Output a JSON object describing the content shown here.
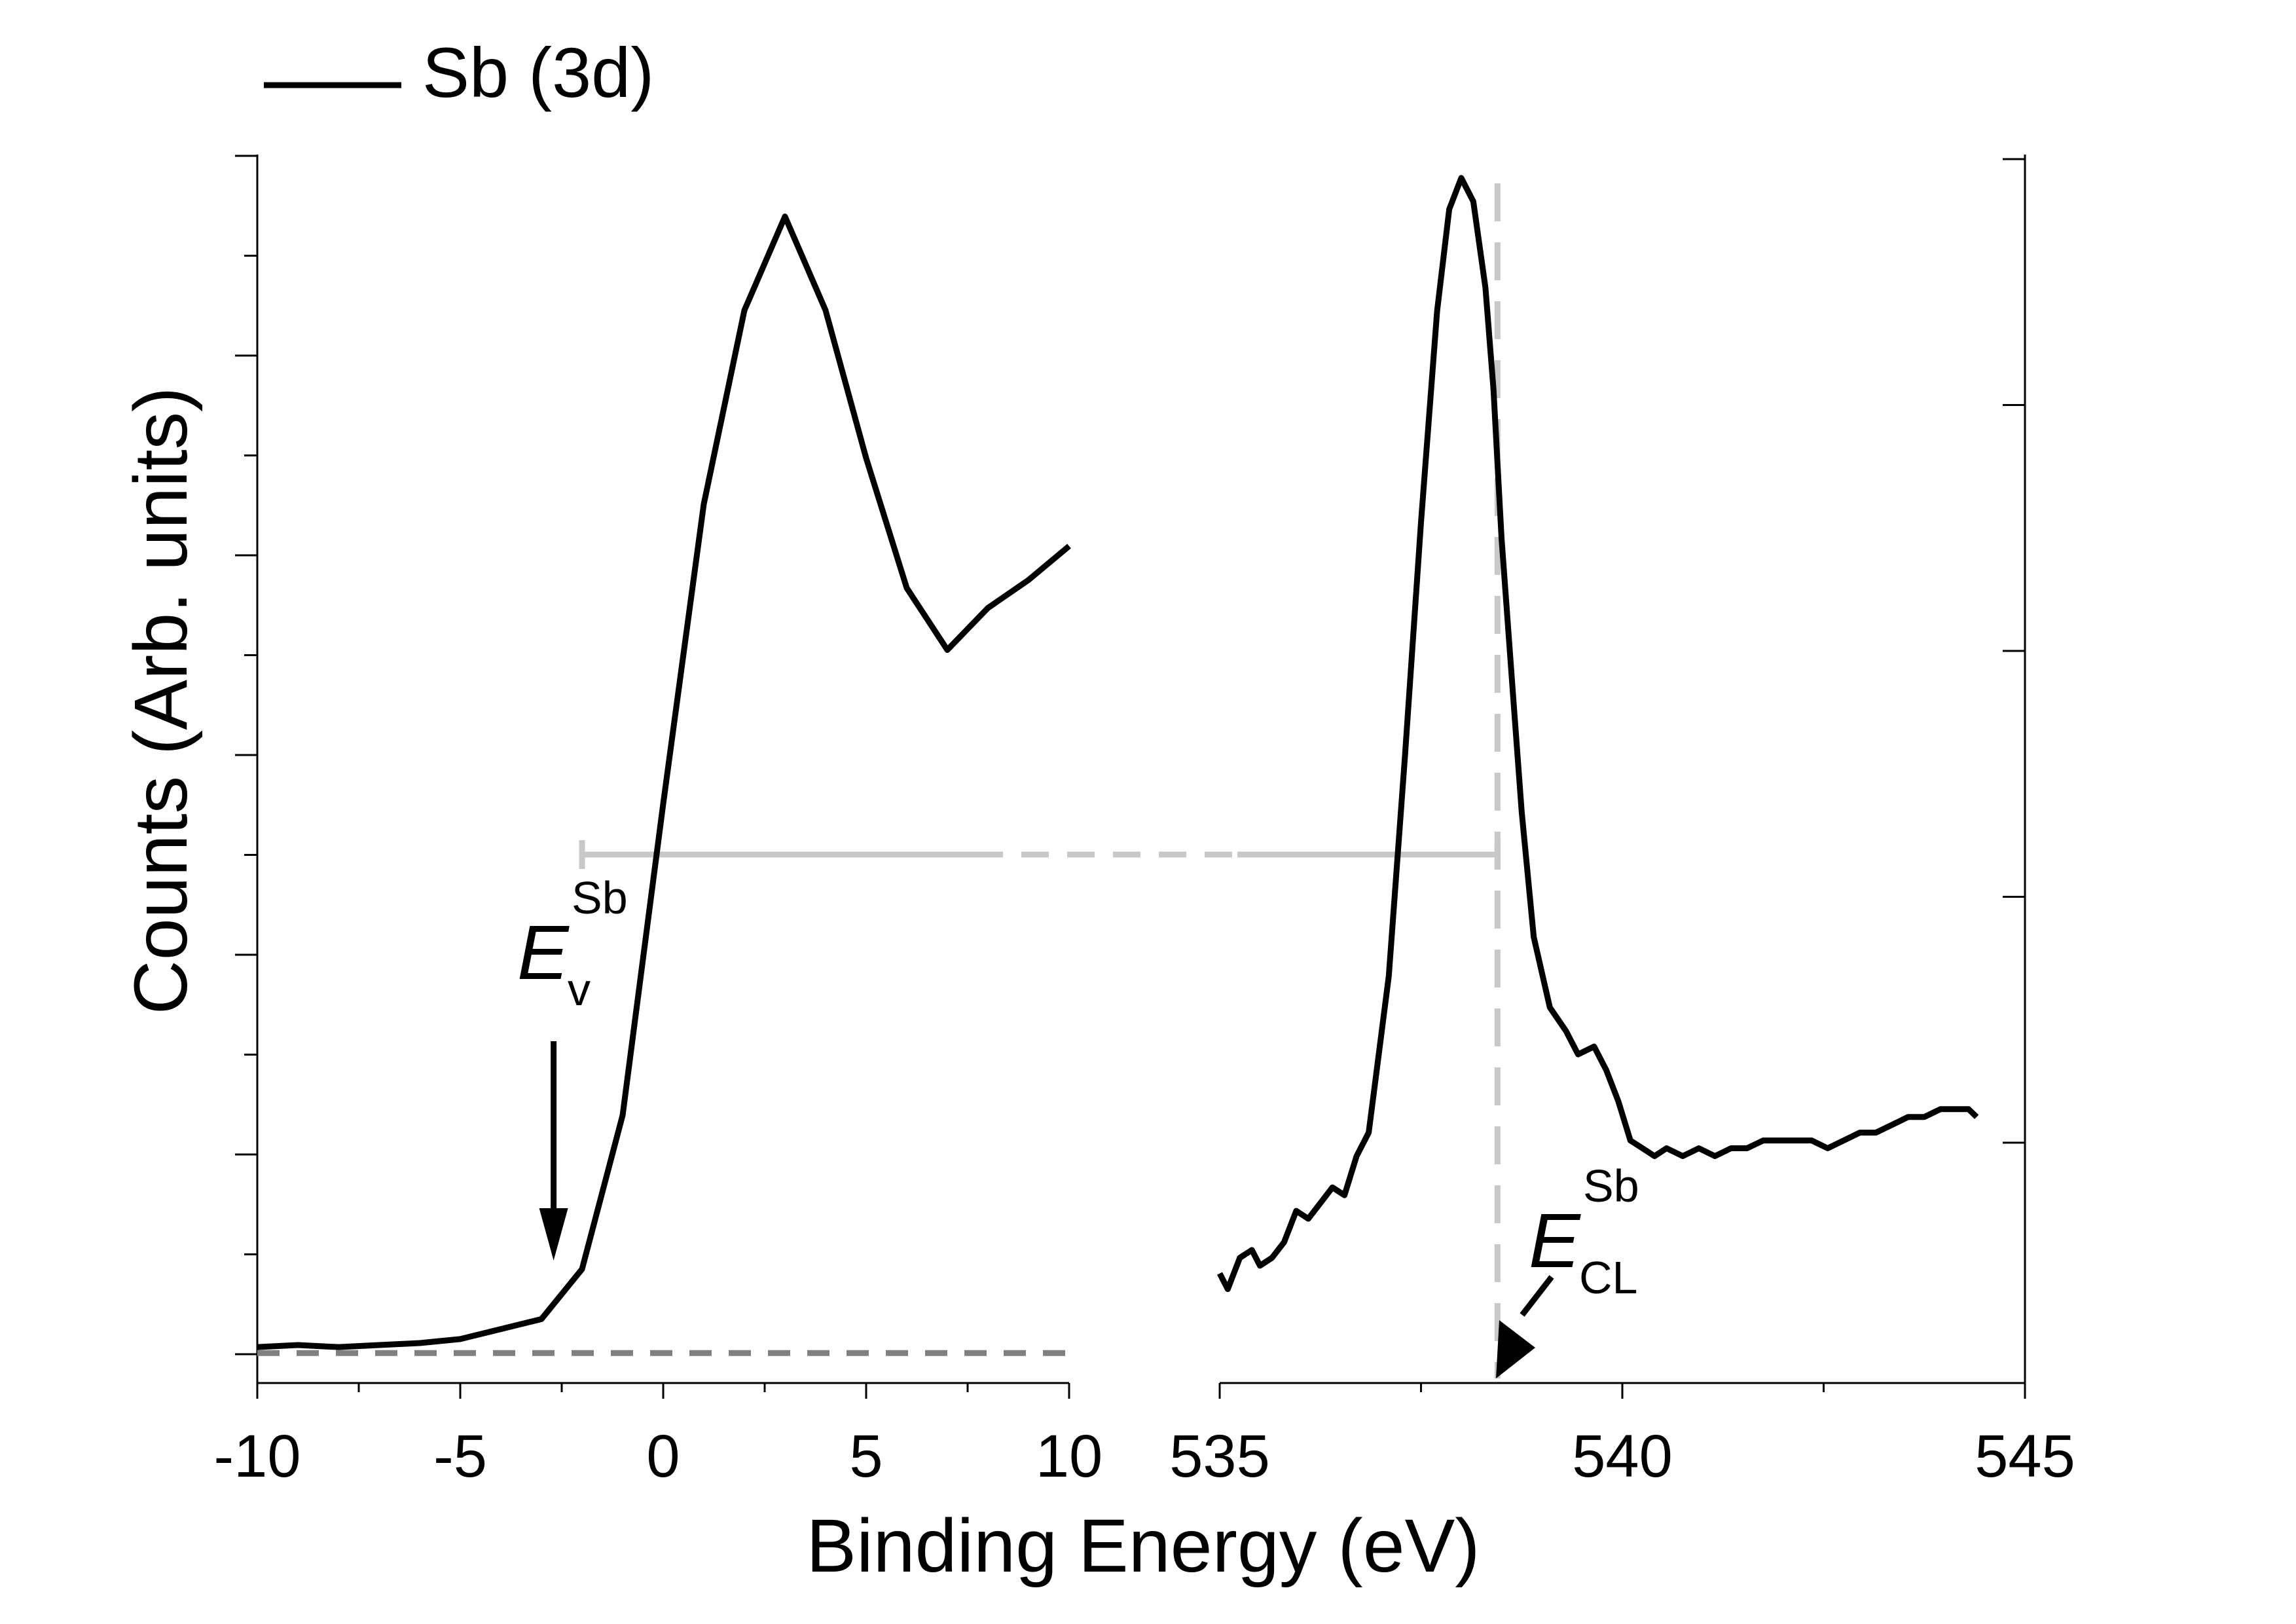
{
  "chart_data": {
    "type": "line",
    "title": "",
    "xlabel": "Binding Energy (eV)",
    "ylabel": "Counts (Arb. units)",
    "legend": {
      "position": "top-left",
      "entries": [
        "Sb (3d)"
      ]
    },
    "grid": false,
    "panels": [
      {
        "name": "valence-band",
        "xlim": [
          -10,
          10
        ],
        "ylim": [
          -0.015,
          0.6
        ],
        "xticks": [
          -10,
          -5,
          0,
          5,
          10
        ],
        "xtick_labels": [
          "-10",
          "-5",
          "0",
          "5",
          "10"
        ],
        "baseline_y": 0,
        "series": [
          {
            "name": "Sb (3d)",
            "x": [
              -10,
              -9,
              -8,
              -7,
              -6,
              -5,
              -4,
              -3,
              -2,
              -1,
              0,
              1,
              2,
              3,
              4,
              5,
              6,
              7,
              8,
              9,
              10
            ],
            "y": [
              0.003,
              0.004,
              0.003,
              0.004,
              0.005,
              0.007,
              0.012,
              0.017,
              0.042,
              0.119,
              0.275,
              0.425,
              0.522,
              0.569,
              0.522,
              0.448,
              0.383,
              0.352,
              0.373,
              0.387,
              0.404
            ]
          }
        ]
      },
      {
        "name": "core-level",
        "xlim": [
          535,
          545
        ],
        "ylim": [
          -0.0012,
          0.0145
        ],
        "xticks": [
          535,
          540,
          545
        ],
        "xtick_labels": [
          "535",
          "540",
          "545"
        ],
        "series": [
          {
            "name": "Sb (3d)",
            "x": [
              535,
              535.1,
              535.25,
              535.4,
              535.5,
              535.65,
              535.8,
              535.95,
              536.1,
              536.25,
              536.4,
              536.55,
              536.7,
              536.85,
              536.95,
              537.1,
              537.3,
              537.5,
              537.7,
              537.85,
              538.0,
              538.15,
              538.3,
              538.4,
              538.5,
              538.65,
              538.75,
              538.9,
              539.1,
              539.3,
              539.45,
              539.65,
              539.8,
              539.95,
              540.1,
              540.25,
              540.4,
              540.55,
              540.75,
              540.95,
              541.15,
              541.35,
              541.55,
              541.75,
              541.95,
              542.15,
              542.35,
              542.55,
              542.75,
              542.95,
              543.15,
              543.35,
              543.55,
              543.75,
              543.95,
              544.1,
              544.3,
              544.4
            ],
            "y": [
              0.0002,
              0.0,
              0.0004,
              0.0005,
              0.0003,
              0.0004,
              0.0006,
              0.001,
              0.0009,
              0.0011,
              0.0013,
              0.0012,
              0.0017,
              0.002,
              0.0028,
              0.004,
              0.0068,
              0.0098,
              0.0125,
              0.0138,
              0.0142,
              0.0139,
              0.0128,
              0.0115,
              0.0096,
              0.0075,
              0.0061,
              0.0045,
              0.0036,
              0.0033,
              0.003,
              0.0031,
              0.0028,
              0.0024,
              0.0019,
              0.0018,
              0.0017,
              0.0018,
              0.0017,
              0.0018,
              0.0017,
              0.0018,
              0.0018,
              0.0019,
              0.0019,
              0.0019,
              0.0019,
              0.0018,
              0.0019,
              0.002,
              0.002,
              0.0021,
              0.0022,
              0.0022,
              0.0023,
              0.0023,
              0.0023,
              0.0022
            ]
          }
        ]
      }
    ],
    "annotations": {
      "valence_band_maximum": {
        "symbol": "E",
        "subscript": "v",
        "superscript": "Sb",
        "x": -2.7
      },
      "core_level": {
        "symbol": "E",
        "subscript": "CL",
        "superscript": "Sb",
        "x": 538.45
      },
      "separation": {
        "from_x": -2,
        "to_x": 538.45
      }
    }
  }
}
